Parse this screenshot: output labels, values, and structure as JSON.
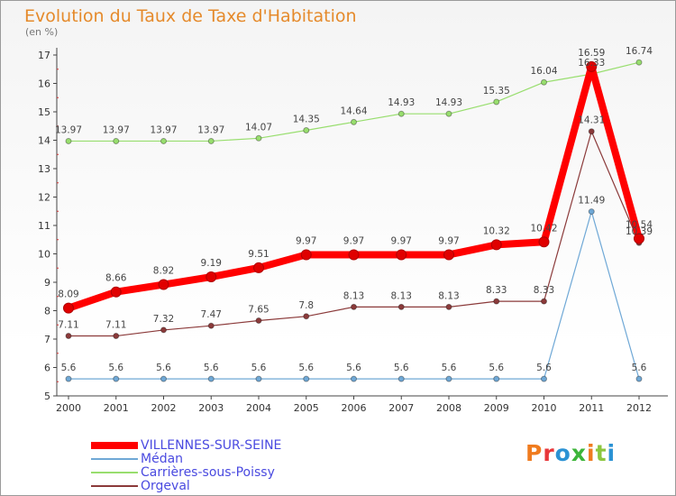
{
  "header": {
    "title": "Evolution du Taux de Taxe d'Habitation",
    "unit": "(en %)"
  },
  "brand": {
    "text": "Proxiti",
    "colors": [
      "#f07b1e",
      "#e8373a",
      "#2b92d4",
      "#3db53a",
      "#f07b1e",
      "#8cc63f",
      "#2b92d4"
    ]
  },
  "chart_data": {
    "type": "line",
    "title": "Evolution du Taux de Taxe d'Habitation",
    "ylabel": "(en %)",
    "xlabel": "",
    "x": [
      "2000",
      "2001",
      "2002",
      "2003",
      "2004",
      "2005",
      "2006",
      "2007",
      "2008",
      "2009",
      "2010",
      "2011",
      "2012"
    ],
    "ylim": [
      5,
      17
    ],
    "yticks": [
      "5",
      "6",
      "7",
      "8",
      "9",
      "10",
      "11",
      "12",
      "13",
      "14",
      "15",
      "16",
      "17"
    ],
    "grid": false,
    "legend_position": "bottom-left",
    "series": [
      {
        "name": "VILLENNES-SUR-SEINE",
        "color": "#ff0000",
        "width": 8,
        "values": [
          8.09,
          8.66,
          8.92,
          9.19,
          9.51,
          9.97,
          9.97,
          9.97,
          9.97,
          10.32,
          10.42,
          16.59,
          10.54
        ],
        "labels": [
          "8.09",
          "8.66",
          "8.92",
          "9.19",
          "9.51",
          "9.97",
          "9.97",
          "9.97",
          "9.97",
          "10.32",
          "10.42",
          "16.59",
          "10.54"
        ]
      },
      {
        "name": "Médan",
        "color": "#6fa8d6",
        "width": 1.2,
        "values": [
          5.6,
          5.6,
          5.6,
          5.6,
          5.6,
          5.6,
          5.6,
          5.6,
          5.6,
          5.6,
          5.6,
          11.49,
          5.6
        ],
        "labels": [
          "5.6",
          "5.6",
          "5.6",
          "5.6",
          "5.6",
          "5.6",
          "5.6",
          "5.6",
          "5.6",
          "5.6",
          "5.6",
          "11.49",
          "5.6"
        ]
      },
      {
        "name": "Carrières-sous-Poissy",
        "color": "#98de6e",
        "width": 1.2,
        "values": [
          13.97,
          13.97,
          13.97,
          13.97,
          14.07,
          14.35,
          14.64,
          14.93,
          14.93,
          15.35,
          16.04,
          16.33,
          16.74
        ],
        "labels": [
          "13.97",
          "13.97",
          "13.97",
          "13.97",
          "14.07",
          "14.35",
          "14.64",
          "14.93",
          "14.93",
          "15.35",
          "16.04",
          "16.33",
          "16.74"
        ]
      },
      {
        "name": "Orgeval",
        "color": "#8b3a3a",
        "width": 1.2,
        "values": [
          7.11,
          7.11,
          7.32,
          7.47,
          7.65,
          7.8,
          8.13,
          8.13,
          8.13,
          8.33,
          8.33,
          14.31,
          10.39
        ],
        "labels": [
          "7.11",
          "7.11",
          "7.32",
          "7.47",
          "7.65",
          "7.8",
          "8.13",
          "8.13",
          "8.13",
          "8.33",
          "8.33",
          "14.31",
          "10.39"
        ]
      }
    ]
  }
}
